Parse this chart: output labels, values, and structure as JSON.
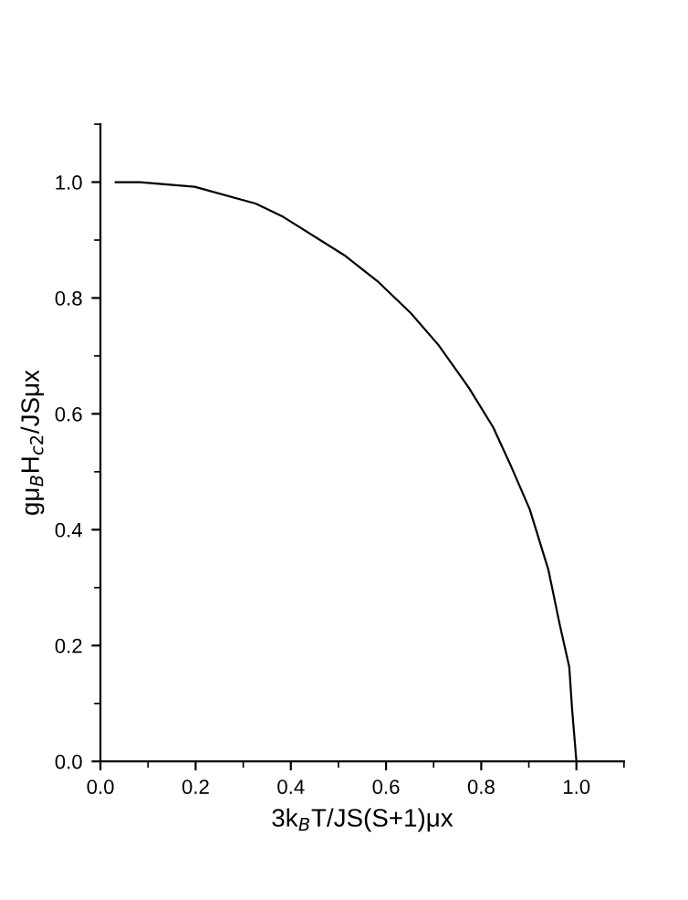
{
  "chart_data": {
    "type": "line",
    "xlabel": "3k$_{B}$T/JS(S+1)μx",
    "ylabel": "gμ$_{B}$H$_{c2}$/JSμx",
    "series": [
      {
        "color": "#000000",
        "x": [
          0.032,
          0.083,
          0.198,
          0.326,
          0.384,
          0.512,
          0.582,
          0.652,
          0.71,
          0.774,
          0.825,
          0.863,
          0.902,
          0.941,
          0.965,
          0.985,
          0.991,
          1.0
        ],
        "values": [
          1.0,
          1.0,
          0.992,
          0.963,
          0.94,
          0.874,
          0.829,
          0.774,
          0.719,
          0.645,
          0.577,
          0.509,
          0.435,
          0.331,
          0.236,
          0.163,
          0.089,
          0.0
        ]
      }
    ],
    "xlim": [
      0,
      1.1
    ],
    "ylim": [
      0,
      1.1
    ],
    "xticks": [
      {
        "value": 0,
        "label": "0.0"
      },
      0.2,
      0.4,
      0.6,
      0.8,
      {
        "value": 1,
        "label": "1.0"
      }
    ],
    "yticks": [
      {
        "value": 0,
        "label": "0.0"
      },
      0.2,
      0.4,
      0.6,
      0.8,
      {
        "value": 1,
        "label": "1.0"
      }
    ],
    "grid": false,
    "legend": false,
    "marker": "none",
    "line_style": "solid"
  }
}
